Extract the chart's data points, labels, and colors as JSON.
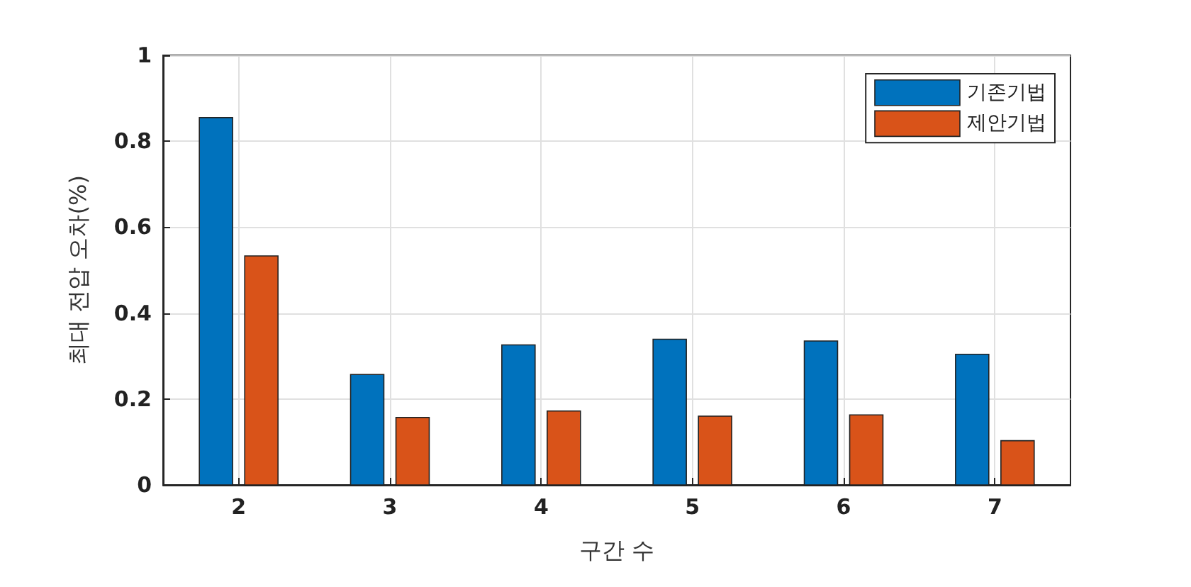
{
  "chart_data": {
    "type": "bar",
    "xlabel": "구간 수",
    "ylabel": "최대 전압 오차(%)",
    "x": [
      2,
      3,
      4,
      5,
      6,
      7
    ],
    "xlim": [
      1.5,
      7.5
    ],
    "xticks": [
      2,
      3,
      4,
      5,
      6,
      7
    ],
    "ylim": [
      0,
      1
    ],
    "yticks": [
      0,
      0.2,
      0.4,
      0.6,
      0.8,
      1
    ],
    "series": [
      {
        "name": "기존기법",
        "color": "#0072bd",
        "values": [
          0.855,
          0.257,
          0.326,
          0.339,
          0.335,
          0.304
        ]
      },
      {
        "name": "제안기법",
        "color": "#d95319",
        "values": [
          0.533,
          0.157,
          0.172,
          0.16,
          0.163,
          0.103
        ]
      }
    ],
    "grid": true,
    "legend": "top right"
  }
}
